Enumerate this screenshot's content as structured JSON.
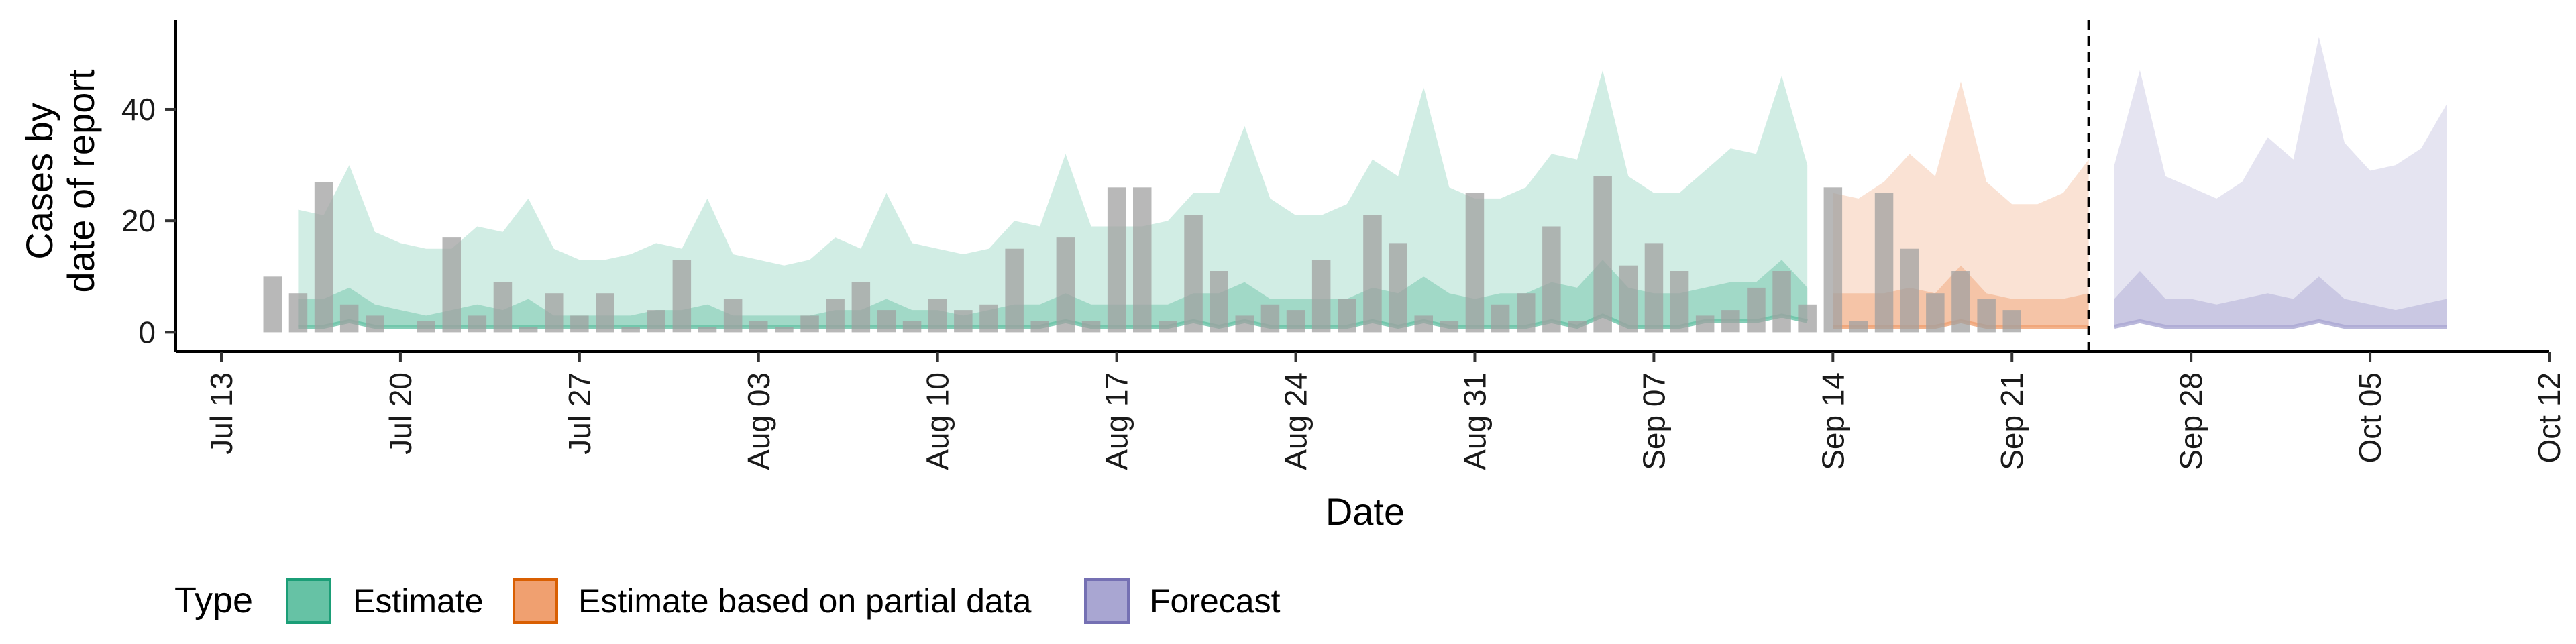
{
  "chart_data": {
    "type": "area",
    "xlabel": "Date",
    "ylabel_lines": [
      "Cases by",
      "date of report"
    ],
    "x_ticks": [
      "Jul 13",
      "Jul 20",
      "Jul 27",
      "Aug 03",
      "Aug 10",
      "Aug 17",
      "Aug 24",
      "Aug 31",
      "Sep 07",
      "Sep 14",
      "Sep 21",
      "Sep 28",
      "Oct 05",
      "Oct 12"
    ],
    "y_ticks": [
      0,
      20,
      40
    ],
    "xlim": [
      "2020-07-13",
      "2020-10-12"
    ],
    "ylim": [
      -2,
      56
    ],
    "forecast_start_marker": "2020-09-24",
    "legend": {
      "title": "Type",
      "position": "bottom",
      "items": [
        {
          "label": "Estimate",
          "fill": "#66c2a5",
          "stroke": "#1b9e77"
        },
        {
          "label": "Estimate based on partial data",
          "fill": "#f0a070",
          "stroke": "#d95f02"
        },
        {
          "label": "Forecast",
          "fill": "#a9a6d2",
          "stroke": "#7570b3"
        }
      ]
    },
    "colors": {
      "estimate": "#1b9e77",
      "partial": "#d95f02",
      "forecast": "#7570b3",
      "observed_bars": "#a0a0a0"
    },
    "observed_cases": {
      "start_date": "2020-07-15",
      "values": [
        10,
        7,
        27,
        5,
        3,
        0,
        2,
        17,
        3,
        9,
        1,
        7,
        3,
        7,
        1,
        4,
        13,
        1,
        6,
        2,
        1,
        3,
        6,
        9,
        4,
        2,
        6,
        4,
        5,
        15,
        2,
        17,
        2,
        26,
        26,
        2,
        21,
        11,
        3,
        5,
        4,
        13,
        6,
        21,
        16,
        3,
        2,
        25,
        5,
        7,
        19,
        2,
        28,
        12,
        16,
        11,
        3,
        4,
        8,
        11,
        5,
        26,
        2,
        25,
        15,
        7,
        11,
        6,
        4
      ]
    },
    "series": [
      {
        "name": "Estimate",
        "start_date": "2020-07-16",
        "upper90": [
          22,
          21,
          30,
          18,
          16,
          15,
          15,
          19,
          18,
          24,
          15,
          13,
          13,
          14,
          16,
          15,
          24,
          14,
          13,
          12,
          13,
          17,
          15,
          25,
          16,
          15,
          14,
          15,
          20,
          19,
          32,
          19,
          19,
          19,
          20,
          25,
          25,
          37,
          24,
          21,
          21,
          23,
          31,
          28,
          44,
          26,
          24,
          24,
          26,
          32,
          31,
          47,
          28,
          25,
          25,
          29,
          33,
          32,
          46,
          30
        ],
        "upper50": [
          6,
          6,
          8,
          5,
          4,
          3,
          4,
          5,
          4,
          6,
          3,
          3,
          3,
          3,
          4,
          4,
          5,
          3,
          3,
          3,
          3,
          4,
          4,
          6,
          4,
          4,
          3,
          4,
          5,
          5,
          7,
          5,
          5,
          5,
          5,
          7,
          7,
          9,
          6,
          6,
          6,
          6,
          8,
          7,
          10,
          7,
          6,
          7,
          7,
          9,
          8,
          13,
          8,
          7,
          7,
          8,
          9,
          9,
          13,
          8
        ],
        "lower": [
          1,
          1,
          2,
          1,
          1,
          1,
          1,
          1,
          1,
          1,
          1,
          1,
          1,
          1,
          1,
          1,
          1,
          1,
          1,
          1,
          1,
          1,
          1,
          1,
          1,
          1,
          1,
          1,
          1,
          1,
          2,
          1,
          1,
          1,
          1,
          2,
          1,
          2,
          1,
          1,
          1,
          1,
          2,
          1,
          2,
          1,
          1,
          1,
          1,
          2,
          1,
          3,
          1,
          1,
          1,
          2,
          2,
          2,
          3,
          2
        ]
      },
      {
        "name": "Estimate based on partial data",
        "start_date": "2020-09-14",
        "upper90": [
          25,
          24,
          27,
          32,
          28,
          45,
          27,
          23,
          23,
          25,
          31
        ],
        "upper50": [
          7,
          7,
          7,
          8,
          7,
          12,
          7,
          6,
          6,
          6,
          7
        ],
        "lower": [
          1,
          1,
          1,
          1,
          1,
          2,
          1,
          1,
          1,
          1,
          1
        ]
      },
      {
        "name": "Forecast",
        "start_date": "2020-09-25",
        "upper90": [
          30,
          47,
          28,
          26,
          24,
          27,
          35,
          31,
          53,
          34,
          29,
          30,
          33,
          41
        ],
        "upper50": [
          6,
          11,
          6,
          6,
          5,
          6,
          7,
          6,
          10,
          6,
          5,
          4,
          5,
          6
        ],
        "lower": [
          1,
          2,
          1,
          1,
          1,
          1,
          1,
          1,
          2,
          1,
          1,
          1,
          1,
          1
        ]
      }
    ]
  }
}
